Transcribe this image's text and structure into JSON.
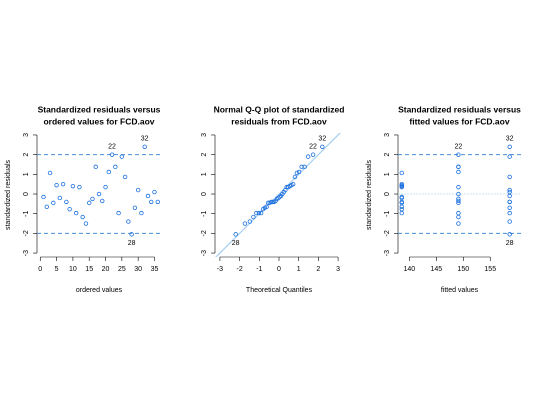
{
  "chart_data": [
    {
      "type": "scatter",
      "title": [
        "Standardized residuals versus",
        "ordered values for FCD.aov"
      ],
      "x_label": "ordered values",
      "y_label": "standardized residuals",
      "x": [
        1,
        2,
        3,
        4,
        5,
        6,
        7,
        8,
        9,
        10,
        11,
        12,
        13,
        14,
        15,
        16,
        17,
        18,
        19,
        20,
        21,
        22,
        23,
        24,
        25,
        26,
        27,
        28,
        29,
        30,
        31,
        32,
        33,
        34,
        35,
        36
      ],
      "values": [
        -0.15,
        -0.65,
        1.07,
        -0.45,
        0.45,
        -0.2,
        0.5,
        -0.4,
        -0.77,
        0.4,
        -0.97,
        0.35,
        -1.17,
        -1.5,
        -0.45,
        -0.25,
        1.38,
        0.0,
        -0.35,
        0.35,
        1.12,
        2.0,
        1.38,
        -0.97,
        1.9,
        0.87,
        -1.4,
        -2.05,
        -0.7,
        0.2,
        -0.97,
        2.4,
        -0.1,
        -0.4,
        0.1,
        -0.4
      ],
      "point_labels": [
        null,
        null,
        null,
        null,
        null,
        null,
        null,
        null,
        null,
        null,
        null,
        null,
        null,
        null,
        null,
        null,
        null,
        null,
        null,
        null,
        null,
        "22",
        null,
        null,
        null,
        null,
        null,
        "28",
        null,
        null,
        null,
        "32",
        null,
        null,
        null,
        null
      ],
      "xlim": [
        -1,
        37
      ],
      "ylim": [
        -3.2,
        3.1
      ],
      "xticks": [
        0,
        5,
        10,
        15,
        20,
        25,
        30,
        35
      ],
      "yticks": [
        -3,
        -2,
        -1,
        0,
        1,
        2,
        3
      ],
      "hlines": [
        -2,
        2
      ],
      "color": "#1a6fdf",
      "line_color": "#4a8fd8"
    },
    {
      "type": "qq",
      "title": [
        "Normal Q-Q plot of standardized",
        "residuals from FCD.aov"
      ],
      "x_label": "Theoretical Quantiles",
      "x": [
        -2.2,
        -1.73,
        -1.48,
        -1.3,
        -1.15,
        -1.02,
        -0.91,
        -0.81,
        -0.72,
        -0.63,
        -0.55,
        -0.47,
        -0.39,
        -0.32,
        -0.25,
        -0.17,
        -0.1,
        -0.03,
        0.03,
        0.1,
        0.17,
        0.25,
        0.32,
        0.39,
        0.47,
        0.55,
        0.63,
        0.72,
        0.81,
        0.91,
        1.02,
        1.15,
        1.3,
        1.48,
        1.73,
        2.2
      ],
      "values": [
        -2.05,
        -1.5,
        -1.4,
        -1.17,
        -0.97,
        -0.97,
        -0.97,
        -0.77,
        -0.7,
        -0.65,
        -0.45,
        -0.45,
        -0.4,
        -0.4,
        -0.4,
        -0.35,
        -0.25,
        -0.2,
        -0.15,
        -0.1,
        0.0,
        0.1,
        0.2,
        0.35,
        0.35,
        0.4,
        0.45,
        0.5,
        0.87,
        1.07,
        1.12,
        1.38,
        1.38,
        1.9,
        2.0,
        2.4
      ],
      "point_labels": [
        "28",
        null,
        null,
        null,
        null,
        null,
        null,
        null,
        null,
        null,
        null,
        null,
        null,
        null,
        null,
        null,
        null,
        null,
        null,
        null,
        null,
        null,
        null,
        null,
        null,
        null,
        null,
        null,
        null,
        null,
        null,
        null,
        null,
        null,
        "22",
        "32"
      ],
      "xlim": [
        -3.25,
        3.25
      ],
      "ylim": [
        -3.2,
        3.1
      ],
      "xticks": [
        -3,
        -2,
        -1,
        0,
        1,
        2,
        3
      ],
      "yticks": [
        -3,
        -2,
        -1,
        0,
        1,
        2,
        3
      ],
      "abline": [
        0,
        1
      ],
      "color": "#1a6fdf",
      "line_color": "#a9d0f2"
    },
    {
      "type": "scatter",
      "title": [
        "Standardized residuals versus",
        "fitted values for FCD.aov"
      ],
      "x_label": "fitted values",
      "y_label": "standardized residuals",
      "x": [
        138.6,
        138.6,
        138.6,
        138.6,
        138.6,
        138.6,
        138.6,
        138.6,
        138.6,
        138.6,
        138.6,
        138.6,
        149.1,
        149.1,
        149.1,
        149.1,
        149.1,
        149.1,
        149.1,
        149.1,
        149.1,
        149.1,
        149.1,
        149.1,
        158.6,
        158.6,
        158.6,
        158.6,
        158.6,
        158.6,
        158.6,
        158.6,
        158.6,
        158.6,
        158.6,
        158.6
      ],
      "values": [
        -0.15,
        -0.65,
        1.07,
        -0.45,
        0.45,
        -0.2,
        0.5,
        -0.4,
        -0.77,
        0.4,
        -0.97,
        0.35,
        -1.17,
        -1.5,
        -0.45,
        -0.25,
        1.38,
        0.0,
        -0.35,
        0.35,
        1.12,
        2.0,
        1.38,
        -0.97,
        1.9,
        0.87,
        -1.4,
        -2.05,
        -0.7,
        0.2,
        -0.97,
        2.4,
        -0.1,
        -0.4,
        0.1,
        -0.4
      ],
      "point_labels": [
        null,
        null,
        null,
        null,
        null,
        null,
        null,
        null,
        null,
        null,
        null,
        null,
        null,
        null,
        null,
        null,
        null,
        null,
        null,
        null,
        null,
        "22",
        null,
        null,
        null,
        null,
        null,
        "28",
        null,
        null,
        null,
        "32",
        null,
        null,
        null,
        null
      ],
      "xlim": [
        137.9,
        160.7
      ],
      "ylim": [
        -3.2,
        3.1
      ],
      "xticks": [
        140,
        145,
        150,
        155
      ],
      "yticks": [
        -3,
        -2,
        -1,
        0,
        1,
        2,
        3
      ],
      "hlines": [
        -2,
        0,
        2
      ],
      "color": "#1a6fdf",
      "line_color": "#4a8fd8"
    }
  ]
}
